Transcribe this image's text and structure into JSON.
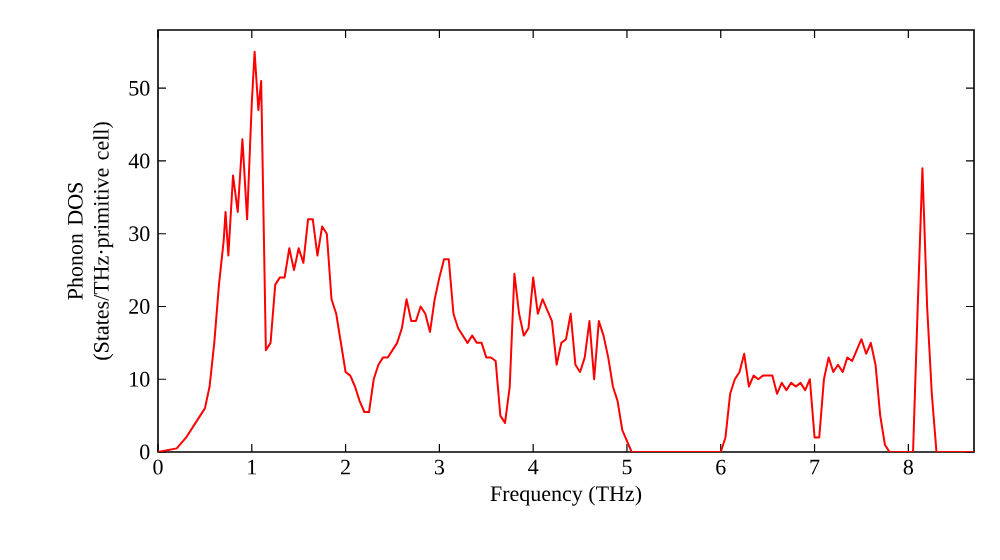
{
  "chart_data": {
    "type": "line",
    "xlabel": "Frequency (THz)",
    "ylabel": "Phonon DOS (States/THz·primitive cell)",
    "xlim": [
      0,
      8.7
    ],
    "ylim": [
      0,
      58
    ],
    "xticks": [
      0,
      1,
      2,
      3,
      4,
      5,
      6,
      7,
      8
    ],
    "yticks": [
      0,
      10,
      20,
      30,
      40,
      50
    ],
    "series": [
      {
        "color": "#ff0000",
        "x": [
          0,
          0.2,
          0.3,
          0.4,
          0.5,
          0.55,
          0.6,
          0.65,
          0.7,
          0.72,
          0.75,
          0.8,
          0.85,
          0.9,
          0.95,
          1.0,
          1.03,
          1.07,
          1.1,
          1.15,
          1.2,
          1.25,
          1.3,
          1.35,
          1.4,
          1.45,
          1.5,
          1.55,
          1.6,
          1.65,
          1.7,
          1.75,
          1.8,
          1.85,
          1.9,
          2.0,
          2.05,
          2.1,
          2.15,
          2.2,
          2.25,
          2.3,
          2.35,
          2.4,
          2.45,
          2.5,
          2.55,
          2.6,
          2.65,
          2.7,
          2.75,
          2.8,
          2.85,
          2.9,
          2.95,
          3.0,
          3.05,
          3.1,
          3.15,
          3.2,
          3.25,
          3.3,
          3.35,
          3.4,
          3.45,
          3.5,
          3.55,
          3.6,
          3.65,
          3.7,
          3.75,
          3.8,
          3.85,
          3.9,
          3.95,
          4.0,
          4.05,
          4.1,
          4.15,
          4.2,
          4.25,
          4.3,
          4.35,
          4.4,
          4.45,
          4.5,
          4.55,
          4.6,
          4.65,
          4.7,
          4.75,
          4.8,
          4.85,
          4.9,
          4.95,
          5.0,
          5.05,
          6.0,
          6.05,
          6.1,
          6.15,
          6.2,
          6.25,
          6.3,
          6.35,
          6.4,
          6.45,
          6.55,
          6.6,
          6.65,
          6.7,
          6.75,
          6.8,
          6.85,
          6.9,
          6.95,
          7.0,
          7.05,
          7.1,
          7.15,
          7.2,
          7.25,
          7.3,
          7.35,
          7.4,
          7.45,
          7.5,
          7.55,
          7.6,
          7.65,
          7.7,
          7.75,
          7.8,
          8.05,
          8.1,
          8.15,
          8.2,
          8.25,
          8.3,
          8.7
        ],
        "values": [
          0,
          0.5,
          2,
          4,
          6,
          9,
          15,
          23,
          29,
          33,
          27,
          38,
          33,
          43,
          32,
          48,
          55,
          47,
          51,
          14,
          15,
          23,
          24,
          24,
          28,
          25,
          28,
          26,
          32,
          32,
          27,
          31,
          30,
          21,
          19,
          11,
          10.5,
          9,
          7,
          5.5,
          5.5,
          10,
          12,
          13,
          13,
          14,
          15,
          17,
          21,
          18,
          18,
          20,
          19,
          16.5,
          21,
          24,
          26.5,
          26.5,
          19,
          17,
          16,
          15,
          16,
          15,
          15,
          13,
          13,
          12.5,
          5,
          4,
          9,
          24.5,
          19,
          16,
          17,
          24,
          19,
          21,
          19.5,
          18,
          12,
          15,
          15.5,
          19,
          12,
          11,
          13,
          18,
          10,
          18,
          16,
          13,
          9,
          7,
          3,
          1.5,
          0,
          0,
          2,
          8,
          10,
          11,
          13.5,
          9,
          10.5,
          10,
          10.5,
          10.5,
          8,
          9.5,
          8.5,
          9.5,
          9,
          9.5,
          8.5,
          10,
          2,
          2,
          10,
          13,
          11,
          12,
          11,
          13,
          12.5,
          14,
          15.5,
          13.5,
          15,
          12,
          5,
          1,
          0,
          0,
          20,
          39,
          20,
          8,
          0,
          0
        ]
      }
    ]
  }
}
